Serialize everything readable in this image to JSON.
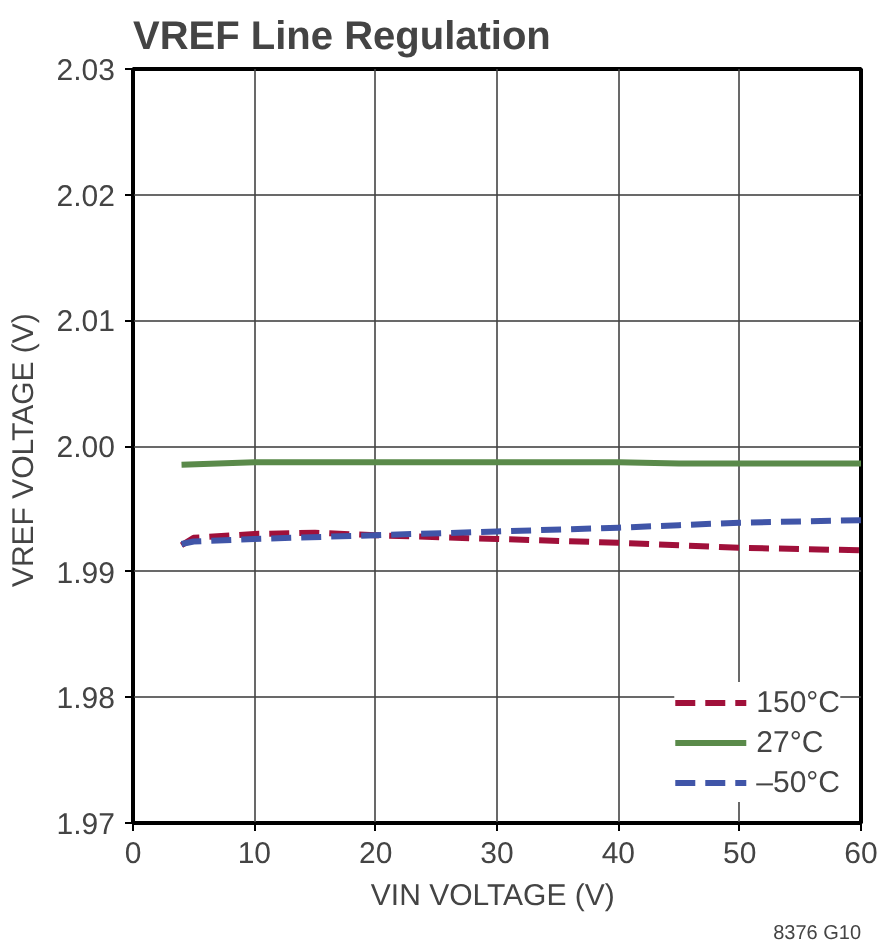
{
  "chart_data": {
    "type": "line",
    "title": "VREF Line Regulation",
    "xlabel": "VIN  VOLTAGE (V)",
    "ylabel": "VREF  VOLTAGE (V)",
    "xlim": [
      0,
      60
    ],
    "xticks": [
      0,
      10,
      20,
      30,
      40,
      50,
      60
    ],
    "ylim": [
      1.97,
      2.03
    ],
    "yticks": [
      {
        "value": 1.97,
        "label": "1.97"
      },
      {
        "value": 1.98,
        "label": "1.98"
      },
      {
        "value": 1.99,
        "label": "1.99"
      },
      {
        "value": 2.0,
        "label": "2.00"
      },
      {
        "value": 2.01,
        "label": "2.01"
      },
      {
        "value": 2.02,
        "label": "2.02"
      },
      {
        "value": 2.03,
        "label": "2.03"
      }
    ],
    "grid": true,
    "legend": "bottom right",
    "series": [
      {
        "name": "150°C",
        "color": "#a0103a",
        "line_style": "dashed",
        "x": [
          4,
          5,
          10,
          15,
          20,
          30,
          40,
          45,
          50,
          60
        ],
        "values": [
          1.9921,
          1.9927,
          1.993,
          1.9931,
          1.9929,
          1.9926,
          1.9923,
          1.9921,
          1.9919,
          1.9917
        ]
      },
      {
        "name": "27°C",
        "color": "#5a8a4a",
        "line_style": "solid",
        "x": [
          4,
          10,
          20,
          30,
          40,
          45,
          50,
          60
        ],
        "values": [
          1.9985,
          1.9987,
          1.9987,
          1.9987,
          1.9987,
          1.9986,
          1.9986,
          1.9986
        ]
      },
      {
        "name": "–50°C",
        "color": "#4055a8",
        "line_style": "dashed",
        "x": [
          4,
          5,
          10,
          20,
          30,
          40,
          45,
          50,
          60
        ],
        "values": [
          1.9922,
          1.9924,
          1.9926,
          1.9929,
          1.9932,
          1.9935,
          1.9937,
          1.9939,
          1.9941
        ]
      }
    ],
    "annotations": [
      "8376 G10"
    ]
  }
}
